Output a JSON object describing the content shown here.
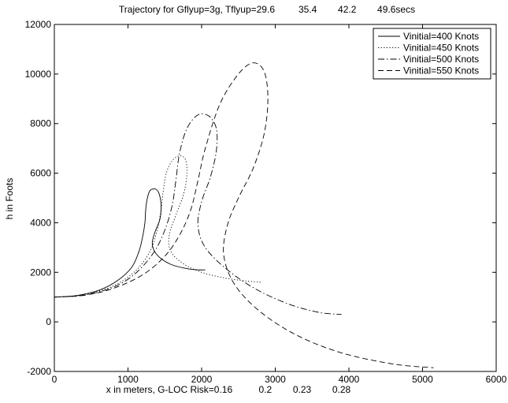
{
  "chart_data": {
    "type": "line",
    "title": "Trajectory for Gflyup=3g, Tflyup=29.6         35.4        42.2        49.6secs",
    "xlabel": "x in meters, G-LOC Risk=0.16          0.2        0.23        0.28",
    "ylabel": "h in Foots",
    "xlim": [
      0,
      6000
    ],
    "ylim": [
      -2000,
      12000
    ],
    "x_ticks": [
      0,
      1000,
      2000,
      3000,
      4000,
      5000,
      6000
    ],
    "y_ticks": [
      -2000,
      0,
      2000,
      4000,
      6000,
      8000,
      10000,
      12000
    ],
    "grid": false,
    "legend_position": "top-right",
    "series": [
      {
        "name": "Vinitial=400 Knots",
        "style": "solid",
        "x": [
          0,
          300,
          600,
          850,
          1050,
          1150,
          1200,
          1230,
          1240,
          1260,
          1300,
          1380,
          1430,
          1450,
          1430,
          1370,
          1330,
          1360,
          1450,
          1600,
          1800,
          1950,
          2050
        ],
        "y": [
          1000,
          1060,
          1270,
          1650,
          2200,
          2850,
          3450,
          4000,
          4500,
          4950,
          5300,
          5350,
          5100,
          4600,
          4100,
          3650,
          3200,
          2850,
          2550,
          2300,
          2150,
          2100,
          2100
        ]
      },
      {
        "name": "Vinitial=450 Knots",
        "style": "dotted",
        "x": [
          0,
          400,
          800,
          1100,
          1300,
          1400,
          1450,
          1480,
          1520,
          1600,
          1700,
          1780,
          1800,
          1760,
          1650,
          1560,
          1580,
          1750,
          2000,
          2300,
          2600,
          2800
        ],
        "y": [
          1000,
          1100,
          1450,
          2050,
          2850,
          3750,
          4550,
          5300,
          6000,
          6500,
          6700,
          6550,
          6000,
          5200,
          4300,
          3500,
          2850,
          2350,
          2000,
          1780,
          1650,
          1600
        ]
      },
      {
        "name": "Vinitial=500 Knots",
        "style": "dashdot",
        "x": [
          0,
          400,
          800,
          1100,
          1350,
          1500,
          1600,
          1650,
          1700,
          1800,
          1950,
          2100,
          2200,
          2200,
          2120,
          2000,
          1950,
          2050,
          2350,
          2750,
          3200,
          3600,
          3900
        ],
        "y": [
          1000,
          1080,
          1400,
          1950,
          2800,
          3700,
          4700,
          5700,
          6800,
          7800,
          8350,
          8300,
          7800,
          6900,
          5850,
          4850,
          3900,
          3000,
          2100,
          1300,
          700,
          380,
          300
        ]
      },
      {
        "name": "Vinitial=550 Knots",
        "style": "dashed",
        "x": [
          0,
          400,
          800,
          1200,
          1500,
          1700,
          1850,
          1950,
          2050,
          2250,
          2500,
          2700,
          2850,
          2900,
          2850,
          2700,
          2500,
          2350,
          2300,
          2450,
          2800,
          3300,
          3900,
          4600,
          5150
        ],
        "y": [
          1000,
          1070,
          1350,
          1900,
          2650,
          3500,
          4500,
          5700,
          7000,
          8800,
          10000,
          10450,
          10100,
          9000,
          7600,
          6200,
          5000,
          3900,
          2700,
          1500,
          400,
          -550,
          -1250,
          -1700,
          -1850
        ]
      }
    ]
  }
}
